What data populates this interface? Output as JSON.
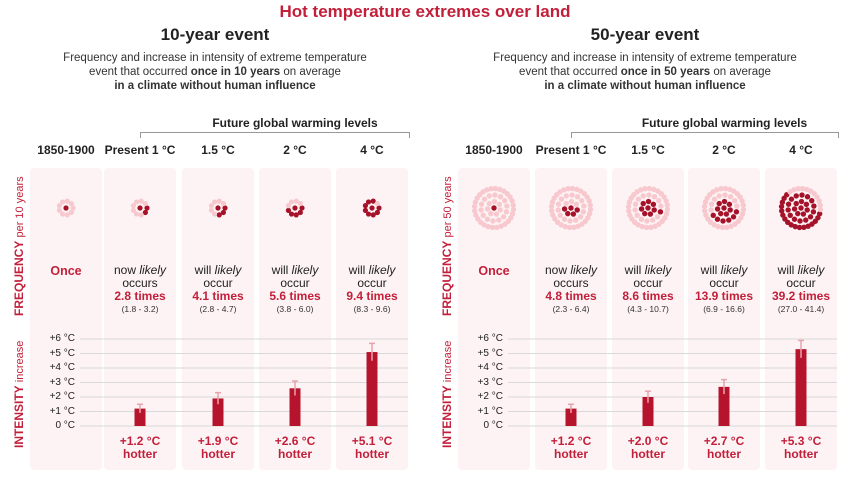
{
  "title": "Hot temperature extremes over land",
  "colors": {
    "accent": "#c21f3a",
    "dot_light": "#f7c9cf",
    "dot_dark": "#a5122a",
    "column_bg": "#fdf3f4"
  },
  "headers": [
    "1850-1900",
    "Present 1 °C",
    "1.5 °C",
    "2 °C",
    "4 °C"
  ],
  "future_label": "Future global warming levels",
  "frequency_label": "FREQUENCY",
  "intensity_label": "INTENSITY",
  "intensity_suffix": "increase",
  "y_ticks": [
    "+6 °C",
    "+5 °C",
    "+4 °C",
    "+3 °C",
    "+2 °C",
    "+1 °C",
    "0 °C"
  ],
  "once_label": "Once",
  "panels": [
    {
      "title": "10-year event",
      "subtitle_line1": "Frequency and increase in intensity of extreme temperature",
      "subtitle_line2_pre": "event that occurred ",
      "subtitle_line2_bold": "once in 10 years",
      "subtitle_line2_post": " on average",
      "subtitle_line3": "in a climate without human influence",
      "freq_suffix": "per 10 years",
      "columns": [
        {
          "lines": [
            "",
            ""
          ],
          "times": "",
          "range": ""
        },
        {
          "lines": [
            "now likely",
            "occurs"
          ],
          "times": "2.8 times",
          "range": "(1.8 - 3.2)"
        },
        {
          "lines": [
            "will likely",
            "occur"
          ],
          "times": "4.1 times",
          "range": "(2.8 - 4.7)"
        },
        {
          "lines": [
            "will likely",
            "occur"
          ],
          "times": "5.6 times",
          "range": "(3.8 - 6.0)"
        },
        {
          "lines": [
            "will likely",
            "occur"
          ],
          "times": "9.4 times",
          "range": "(8.3 - 9.6)"
        }
      ],
      "hotter": [
        "",
        "+1.2 °C",
        "+1.9 °C",
        "+2.6 °C",
        "+5.1 °C"
      ],
      "hotter_word": "hotter"
    },
    {
      "title": "50-year event",
      "subtitle_line1": "Frequency and increase in intensity of extreme temperature",
      "subtitle_line2_pre": "event that occurred ",
      "subtitle_line2_bold": "once in 50 years",
      "subtitle_line2_post": " on average",
      "subtitle_line3": "in a climate without human influence",
      "freq_suffix": "per 50 years",
      "columns": [
        {
          "lines": [
            "",
            ""
          ],
          "times": "",
          "range": ""
        },
        {
          "lines": [
            "now likely",
            "occurs"
          ],
          "times": "4.8 times",
          "range": "(2.3 - 6.4)"
        },
        {
          "lines": [
            "will likely",
            "occur"
          ],
          "times": "8.6 times",
          "range": "(4.3 - 10.7)"
        },
        {
          "lines": [
            "will likely",
            "occur"
          ],
          "times": "13.9 times",
          "range": "(6.9 - 16.6)"
        },
        {
          "lines": [
            "will likely",
            "occur"
          ],
          "times": "39.2 times",
          "range": "(27.0 - 41.4)"
        }
      ],
      "hotter": [
        "",
        "+1.2 °C",
        "+2.0 °C",
        "+2.7 °C",
        "+5.3 °C"
      ],
      "hotter_word": "hotter"
    }
  ],
  "chart_data": [
    {
      "type": "bar",
      "title": "10-year event",
      "categories": [
        "1850-1900",
        "Present 1 °C",
        "1.5 °C",
        "2 °C",
        "4 °C"
      ],
      "values": [
        0,
        1.2,
        1.9,
        2.6,
        5.1
      ],
      "error_low": [
        0,
        0.9,
        1.5,
        2.1,
        4.5
      ],
      "error_high": [
        0,
        1.5,
        2.3,
        3.1,
        5.7
      ],
      "frequency_dots": {
        "total": 10,
        "dark": [
          1,
          2.8,
          4.1,
          5.6,
          9.4
        ]
      },
      "ylim": [
        0,
        6
      ],
      "ylabel": "INTENSITY increase"
    },
    {
      "type": "bar",
      "title": "50-year event",
      "categories": [
        "1850-1900",
        "Present 1 °C",
        "1.5 °C",
        "2 °C",
        "4 °C"
      ],
      "values": [
        0,
        1.2,
        2.0,
        2.7,
        5.3
      ],
      "error_low": [
        0,
        0.9,
        1.6,
        2.2,
        4.7
      ],
      "error_high": [
        0,
        1.5,
        2.4,
        3.2,
        5.9
      ],
      "frequency_dots": {
        "total": 50,
        "dark": [
          1,
          4.8,
          8.6,
          13.9,
          39.2
        ]
      },
      "ylim": [
        0,
        6
      ],
      "ylabel": "INTENSITY increase"
    }
  ]
}
